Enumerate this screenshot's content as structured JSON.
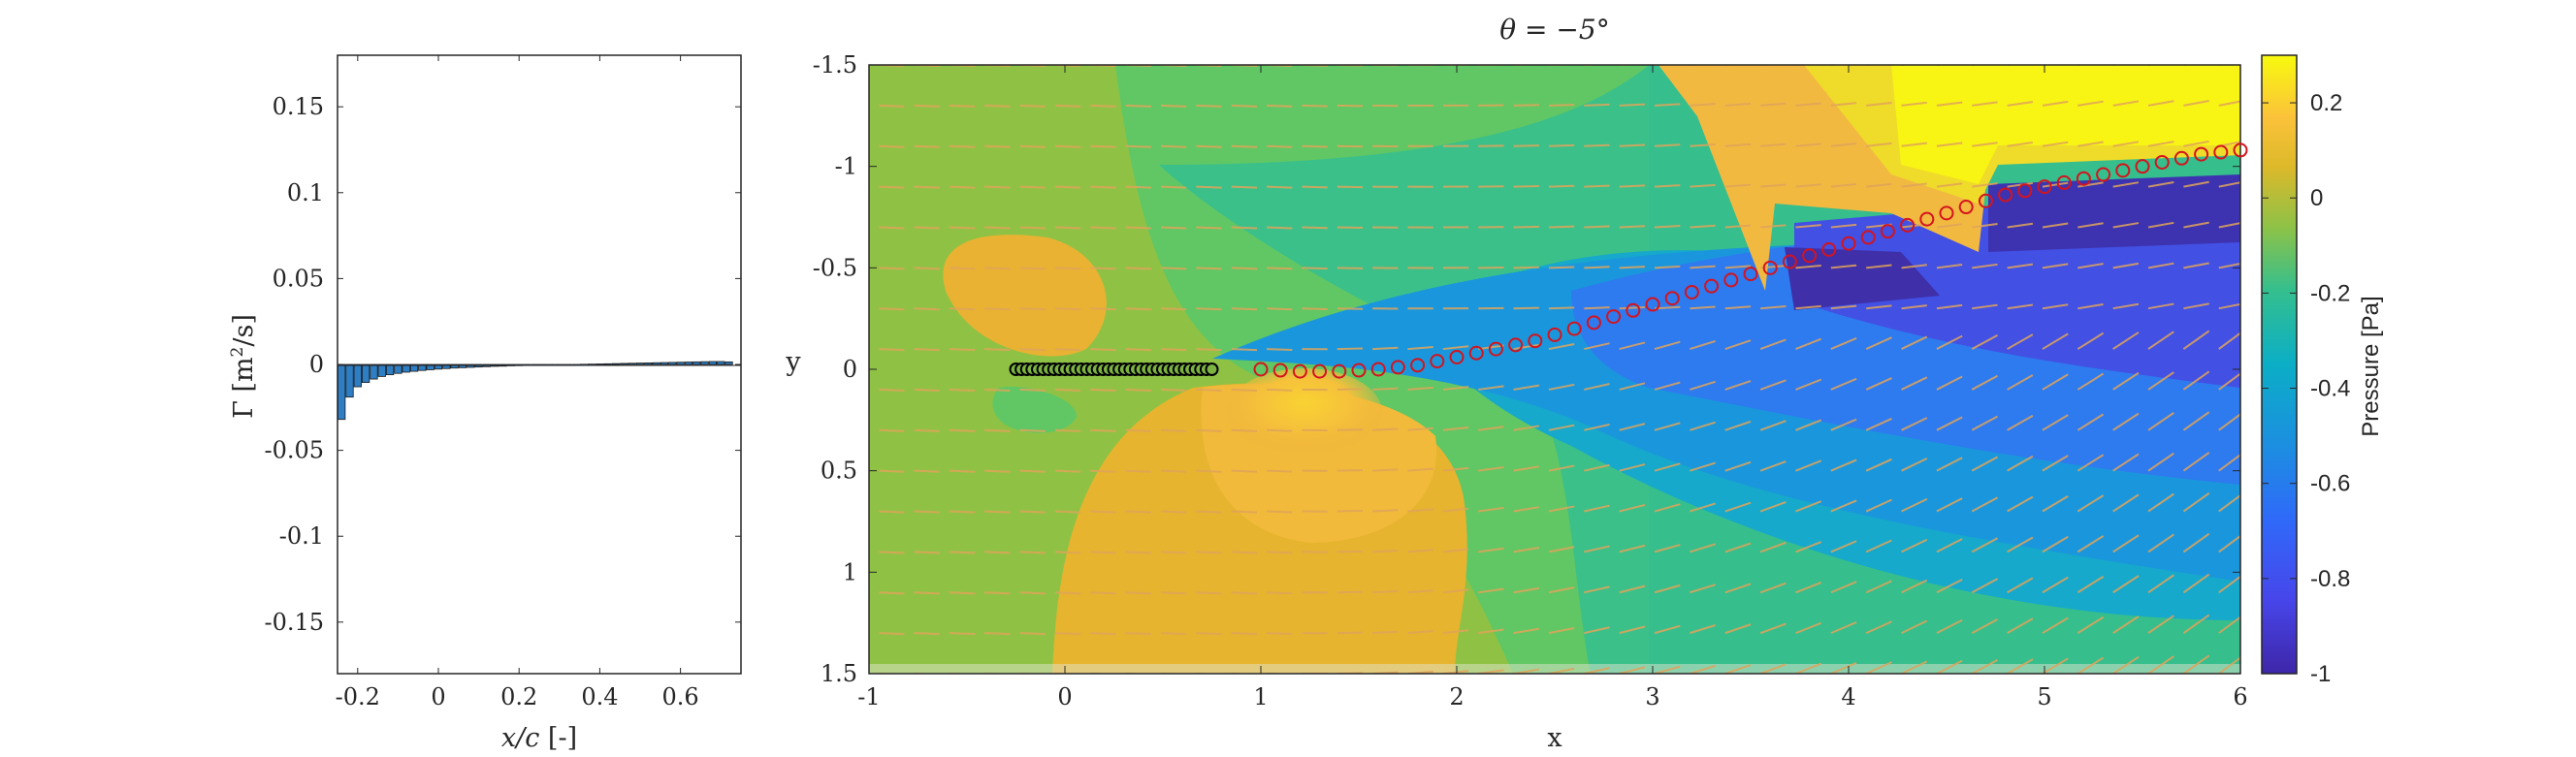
{
  "chart_data": [
    {
      "type": "bar",
      "title": "",
      "xlabel": "x/c [-]",
      "ylabel": "Γ [m²/s]",
      "xlim": [
        -0.25,
        0.75
      ],
      "ylim": [
        -0.18,
        0.18
      ],
      "xticks": [
        "-0.2",
        "0",
        "0.2",
        "0.4",
        "0.6"
      ],
      "yticks": [
        "0.15",
        "0.1",
        "0.05",
        "0",
        "-0.05",
        "-0.1",
        "-0.15"
      ],
      "bar_color": "#2E7EC4",
      "x": [
        -0.24,
        -0.22,
        -0.2,
        -0.18,
        -0.16,
        -0.14,
        -0.12,
        -0.1,
        -0.08,
        -0.06,
        -0.04,
        -0.02,
        0.0,
        0.02,
        0.04,
        0.06,
        0.08,
        0.1,
        0.12,
        0.14,
        0.16,
        0.18,
        0.2,
        0.22,
        0.24,
        0.26,
        0.28,
        0.3,
        0.32,
        0.34,
        0.36,
        0.38,
        0.4,
        0.42,
        0.44,
        0.46,
        0.48,
        0.5,
        0.52,
        0.54,
        0.56,
        0.58,
        0.6,
        0.62,
        0.64,
        0.66,
        0.68,
        0.7,
        0.72
      ],
      "values": [
        -0.032,
        -0.019,
        -0.013,
        -0.0105,
        -0.0085,
        -0.007,
        -0.006,
        -0.0052,
        -0.0045,
        -0.004,
        -0.0035,
        -0.0031,
        -0.0027,
        -0.0024,
        -0.0021,
        -0.0019,
        -0.0017,
        -0.0015,
        -0.0013,
        -0.0011,
        -0.001,
        -0.0008,
        -0.0007,
        -0.0006,
        -0.0005,
        -0.0004,
        -0.0003,
        -0.0002,
        -0.0001,
        0.0,
        0.0001,
        0.0002,
        0.0003,
        0.0004,
        0.0005,
        0.0006,
        0.0007,
        0.0008,
        0.0009,
        0.001,
        0.0011,
        0.0012,
        0.0013,
        0.0014,
        0.0015,
        0.0016,
        0.0017,
        0.0017,
        0.0015
      ]
    },
    {
      "type": "heatmap",
      "title": "θ = −5°",
      "xlabel": "x",
      "ylabel": "y",
      "xlim": [
        -1,
        6
      ],
      "ylim": [
        -1.5,
        1.5
      ],
      "y_reversed": true,
      "xticks": [
        "-1",
        "0",
        "1",
        "2",
        "3",
        "4",
        "5",
        "6"
      ],
      "yticks": [
        "-1.5",
        "-1",
        "-0.5",
        "0",
        "0.5",
        "1",
        "1.5"
      ],
      "colorbar": {
        "label": "Pressure [Pa]",
        "range": [
          -1,
          0.3
        ],
        "ticks": [
          "0.2",
          "0",
          "-0.2",
          "-0.4",
          "-0.6",
          "-0.8",
          "-1"
        ]
      },
      "plate": {
        "x_start": -0.25,
        "x_end": 0.75,
        "y": 0,
        "marker": "black-circle-green-fill"
      },
      "wake": {
        "marker": "red-circle",
        "x": [
          1.0,
          1.1,
          1.2,
          1.3,
          1.4,
          1.5,
          1.6,
          1.7,
          1.8,
          1.9,
          2.0,
          2.1,
          2.2,
          2.3,
          2.4,
          2.5,
          2.6,
          2.7,
          2.8,
          2.9,
          3.0,
          3.1,
          3.2,
          3.3,
          3.4,
          3.5,
          3.6,
          3.7,
          3.8,
          3.9,
          4.0,
          4.1,
          4.2,
          4.3,
          4.4,
          4.5,
          4.6,
          4.7,
          4.8,
          4.9,
          5.0,
          5.1,
          5.2,
          5.3,
          5.4,
          5.5,
          5.6,
          5.7,
          5.8,
          5.9,
          6.0
        ],
        "y": [
          0.0,
          0.005,
          0.01,
          0.01,
          0.01,
          0.005,
          0.0,
          -0.01,
          -0.02,
          -0.04,
          -0.06,
          -0.08,
          -0.1,
          -0.12,
          -0.14,
          -0.17,
          -0.2,
          -0.23,
          -0.26,
          -0.29,
          -0.32,
          -0.35,
          -0.38,
          -0.41,
          -0.44,
          -0.47,
          -0.5,
          -0.53,
          -0.56,
          -0.59,
          -0.62,
          -0.65,
          -0.68,
          -0.71,
          -0.74,
          -0.77,
          -0.8,
          -0.83,
          -0.86,
          -0.88,
          -0.9,
          -0.92,
          -0.94,
          -0.96,
          -0.98,
          -1.0,
          -1.02,
          -1.04,
          -1.06,
          -1.07,
          -1.08
        ]
      }
    }
  ]
}
